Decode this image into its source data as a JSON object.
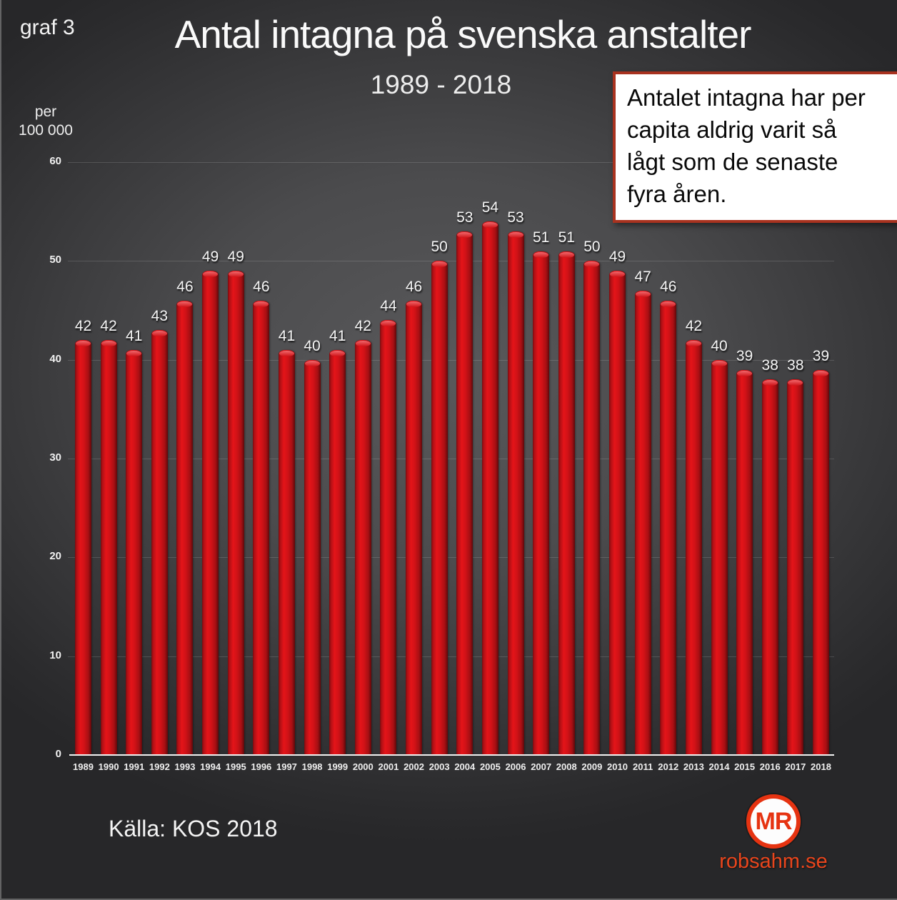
{
  "page": {
    "graf_label": "graf 3",
    "title": "Antal intagna på svenska anstalter",
    "subtitle": "1989 - 2018",
    "y_axis_unit": "per\n100 000",
    "annotation": "Antalet intagna har per\ncapita aldrig varit så\nlågt som de senaste\nfyra åren.",
    "source": "Källa: KOS 2018",
    "logo": {
      "monogram": "MR",
      "site": "robsahm.se"
    }
  },
  "colors": {
    "bar_red": "#d21217",
    "bar_highlight": "#f1686c",
    "bar_shadow": "#5e090b",
    "annotation_border": "#a8321f",
    "annotation_background": "#ffffff",
    "logo_red": "#e63311",
    "text_light": "#f2f2f2",
    "background_center": "#59595b",
    "background_edge": "#272729"
  },
  "chart_data": {
    "type": "bar",
    "title": "Antal intagna på svenska anstalter",
    "subtitle": "1989 - 2018",
    "xlabel": "",
    "ylabel": "per 100 000",
    "ylim": [
      0,
      60
    ],
    "yticks": [
      0,
      10,
      20,
      30,
      40,
      50,
      60
    ],
    "grid": true,
    "legend": false,
    "data_labels": true,
    "bar_color": "#d21217",
    "categories": [
      "1989",
      "1990",
      "1991",
      "1992",
      "1993",
      "1994",
      "1995",
      "1996",
      "1997",
      "1998",
      "1999",
      "2000",
      "2001",
      "2002",
      "2003",
      "2004",
      "2005",
      "2006",
      "2007",
      "2008",
      "2009",
      "2010",
      "2011",
      "2012",
      "2013",
      "2014",
      "2015",
      "2016",
      "2017",
      "2018"
    ],
    "values": [
      42,
      42,
      41,
      43,
      46,
      49,
      49,
      46,
      41,
      40,
      41,
      42,
      44,
      46,
      50,
      53,
      54,
      53,
      51,
      51,
      50,
      49,
      47,
      46,
      42,
      40,
      39,
      38,
      38,
      39
    ]
  }
}
